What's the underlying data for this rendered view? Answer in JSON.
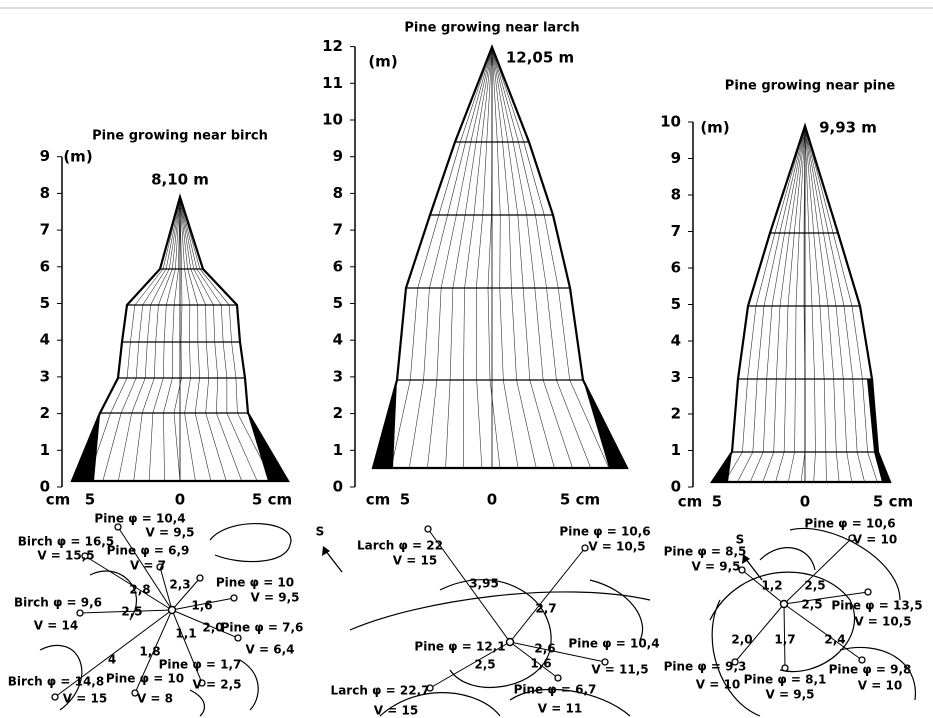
{
  "panels": [
    {
      "title": "Pine growing near birch",
      "height_label": "8,10 m",
      "unit_label": "(m)",
      "y_tick_labels": [
        0,
        1,
        2,
        3,
        4,
        5,
        6,
        7,
        8,
        9
      ],
      "x_tick_labels": [
        "cm",
        "5",
        "0",
        "5 cm"
      ],
      "map_labels": [
        "Pine φ = 10,4",
        "V = 9,5",
        "Birch φ = 16,5",
        "V = 15,5",
        "Pine φ = 6,9",
        "V = 7",
        "2,8",
        "2,3",
        "Pine φ = 10",
        "V = 9,5",
        "Birch φ = 9,6",
        "2,5",
        "1,6",
        "V = 14",
        "2,0",
        "Pine φ = 7,6",
        "1,1",
        "1,8",
        "V = 6,4",
        "4",
        "Pine φ = 1,7",
        "Birch φ = 14,8",
        "Pine φ = 10",
        "V = 2,5",
        "V = 15",
        "V = 8"
      ]
    },
    {
      "title": "Pine growing near larch",
      "height_label": "12,05 m",
      "unit_label": "(m)",
      "y_tick_labels": [
        0,
        1,
        2,
        3,
        4,
        5,
        6,
        7,
        8,
        9,
        10,
        11,
        12
      ],
      "x_tick_labels": [
        "cm",
        "5",
        "0",
        "5 cm"
      ],
      "map_labels": [
        "S",
        "Larch φ = 22",
        "V = 15",
        "Pine φ = 10,6",
        "V = 10,5",
        "3,95",
        "2,7",
        "Pine φ = 12,1",
        "2,6",
        "Pine φ = 10,4",
        "1,6",
        "2,5",
        "V = 11,5",
        "Larch φ = 22,7",
        "V = 15",
        "Pine φ = 6,7",
        "V = 11"
      ]
    },
    {
      "title": "Pine growing near pine",
      "height_label": "9,93 m",
      "unit_label": "(m)",
      "y_tick_labels": [
        0,
        1,
        2,
        3,
        4,
        5,
        6,
        7,
        8,
        9,
        10
      ],
      "x_tick_labels": [
        "cm",
        "5",
        "0",
        "5 cm"
      ],
      "map_labels": [
        "S",
        "Pine φ = 10,6",
        "V = 10",
        "Pine φ = 8,5",
        "V = 9,5",
        "1,2",
        "2,5",
        "2,5",
        "Pine φ = 13,5",
        "V = 10,5",
        "2,0",
        "1,7",
        "2,4",
        "Pine φ = 9,3",
        "Pine φ = 9,8",
        "V = 10",
        "Pine φ = 8,1",
        "V = 9,5",
        "V = 10"
      ]
    }
  ]
}
